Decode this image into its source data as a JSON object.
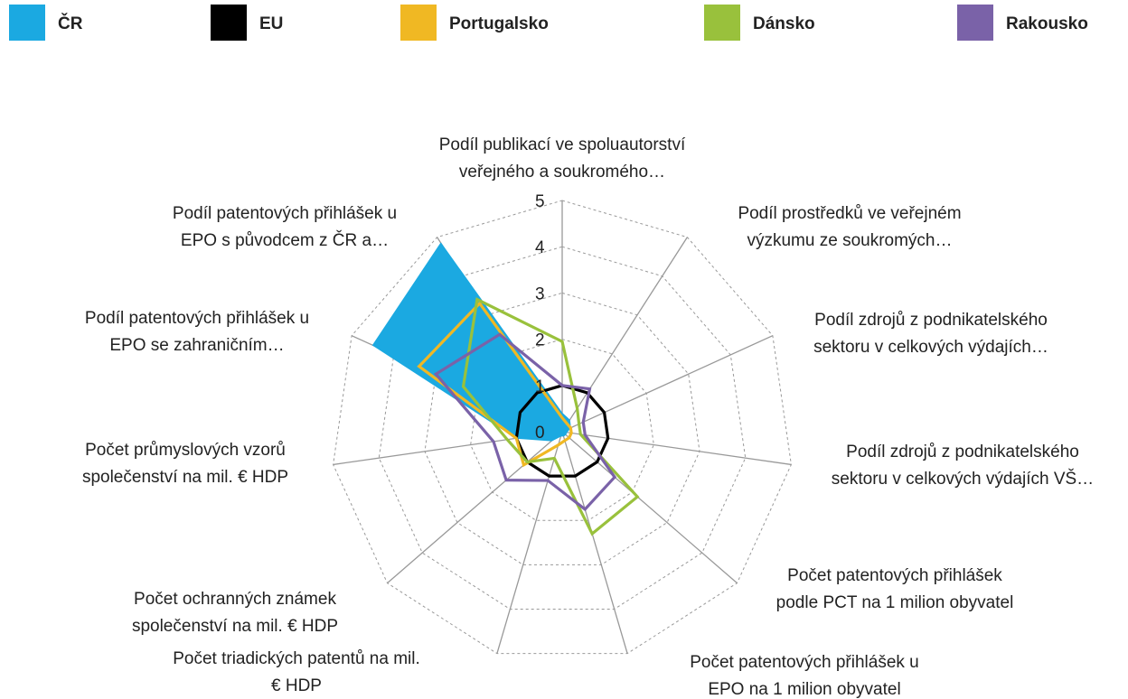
{
  "chart_data": {
    "type": "radar",
    "categories": [
      [
        "Podíl publikací ve spoluautorství",
        "veřejného a soukromého…"
      ],
      [
        "Podíl prostředků ve veřejném",
        "výzkumu ze soukromých…"
      ],
      [
        "Podíl zdrojů z podnikatelského",
        "sektoru v celkových výdajích…"
      ],
      [
        "Podíl zdrojů z podnikatelského",
        "sektoru v celkových výdajích VŠ…"
      ],
      [
        "Počet patentových přihlášek",
        "podle PCT na 1 milion obyvatel"
      ],
      [
        "Počet patentových přihlášek u",
        "EPO na 1 milion obyvatel"
      ],
      [
        "Počet triadických patentů na mil.",
        "€ HDP"
      ],
      [
        "Počet ochranných známek",
        "společenství na mil. € HDP"
      ],
      [
        "Počet průmyslových vzorů",
        "společenství na mil. € HDP"
      ],
      [
        "Podíl patentových přihlášek u",
        "EPO se zahraničním…"
      ],
      [
        "Podíl patentových přihlášek u",
        "EPO s původcem z ČR a…"
      ]
    ],
    "series": [
      {
        "name": "ČR",
        "color": "#1ba9e1",
        "filled": true,
        "values": [
          0.4,
          0.3,
          0.2,
          0.1,
          0.1,
          0.1,
          0.1,
          0.3,
          1.0,
          4.5,
          4.85
        ]
      },
      {
        "name": "EU",
        "color": "#000000",
        "values": [
          1,
          1,
          1,
          1,
          1,
          1,
          1,
          1,
          1,
          1,
          1
        ]
      },
      {
        "name": "Portugalsko",
        "color": "#f0b823",
        "values": [
          0.3,
          0.2,
          0.2,
          0.2,
          0.2,
          0.2,
          0.3,
          1.1,
          1.0,
          3.4,
          3.3
        ]
      },
      {
        "name": "Dánsko",
        "color": "#99c13c",
        "values": [
          1.95,
          0.6,
          0.4,
          0.4,
          2.15,
          2.3,
          0.6,
          1.0,
          1.2,
          2.35,
          3.4
        ]
      },
      {
        "name": "Rakousko",
        "color": "#7a62a8",
        "values": [
          1.0,
          1.1,
          0.5,
          0.5,
          1.5,
          1.75,
          1.1,
          1.6,
          1.5,
          3.0,
          2.5
        ]
      }
    ],
    "ylim": [
      0,
      5
    ],
    "yticks": [
      0,
      1,
      2,
      3,
      4,
      5
    ],
    "grid": true
  }
}
